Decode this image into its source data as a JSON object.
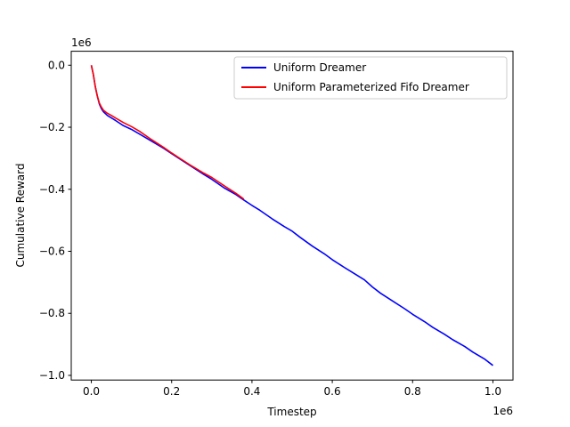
{
  "chart_data": {
    "type": "line",
    "xlabel": "Timestep",
    "ylabel": "Cumulative Reward",
    "x_offset_label": "1e6",
    "y_offset_label": "1e6",
    "xlim": [
      -0.05,
      1.05
    ],
    "ylim": [
      -1.015,
      0.045
    ],
    "x_ticks": [
      0.0,
      0.2,
      0.4,
      0.6,
      0.8,
      1.0
    ],
    "x_tick_labels": [
      "0.0",
      "0.2",
      "0.4",
      "0.6",
      "0.8",
      "1.0"
    ],
    "y_ticks": [
      0.0,
      -0.2,
      -0.4,
      -0.6,
      -0.8,
      -1.0
    ],
    "y_tick_labels": [
      "0.0",
      "−0.2",
      "−0.4",
      "−0.6",
      "−0.8",
      "−1.0"
    ],
    "grid": false,
    "legend_position": "top-right",
    "series": [
      {
        "name": "Uniform Dreamer",
        "color": "#0000ff",
        "x": [
          0.0,
          0.005,
          0.01,
          0.015,
          0.02,
          0.025,
          0.03,
          0.04,
          0.05,
          0.06,
          0.08,
          0.1,
          0.12,
          0.15,
          0.18,
          0.2,
          0.22,
          0.25,
          0.28,
          0.3,
          0.33,
          0.36,
          0.38,
          0.4,
          0.42,
          0.45,
          0.48,
          0.5,
          0.52,
          0.55,
          0.58,
          0.6,
          0.63,
          0.65,
          0.68,
          0.7,
          0.72,
          0.75,
          0.78,
          0.8,
          0.83,
          0.85,
          0.88,
          0.9,
          0.93,
          0.95,
          0.98,
          1.0
        ],
        "y": [
          0.0,
          -0.03,
          -0.07,
          -0.1,
          -0.125,
          -0.14,
          -0.15,
          -0.162,
          -0.17,
          -0.178,
          -0.195,
          -0.207,
          -0.222,
          -0.245,
          -0.268,
          -0.285,
          -0.302,
          -0.327,
          -0.352,
          -0.368,
          -0.395,
          -0.417,
          -0.435,
          -0.452,
          -0.468,
          -0.495,
          -0.52,
          -0.535,
          -0.555,
          -0.583,
          -0.608,
          -0.627,
          -0.652,
          -0.668,
          -0.692,
          -0.715,
          -0.735,
          -0.76,
          -0.785,
          -0.803,
          -0.827,
          -0.845,
          -0.868,
          -0.885,
          -0.907,
          -0.925,
          -0.948,
          -0.968
        ]
      },
      {
        "name": "Uniform Parameterized Fifo Dreamer",
        "color": "#ff0000",
        "x": [
          0.0,
          0.005,
          0.01,
          0.015,
          0.02,
          0.025,
          0.03,
          0.04,
          0.05,
          0.06,
          0.08,
          0.1,
          0.12,
          0.15,
          0.18,
          0.2,
          0.22,
          0.25,
          0.28,
          0.3,
          0.33,
          0.36,
          0.38
        ],
        "y": [
          0.0,
          -0.03,
          -0.07,
          -0.1,
          -0.122,
          -0.135,
          -0.145,
          -0.155,
          -0.162,
          -0.17,
          -0.185,
          -0.198,
          -0.213,
          -0.24,
          -0.265,
          -0.283,
          -0.3,
          -0.325,
          -0.348,
          -0.362,
          -0.388,
          -0.413,
          -0.432
        ]
      }
    ]
  }
}
